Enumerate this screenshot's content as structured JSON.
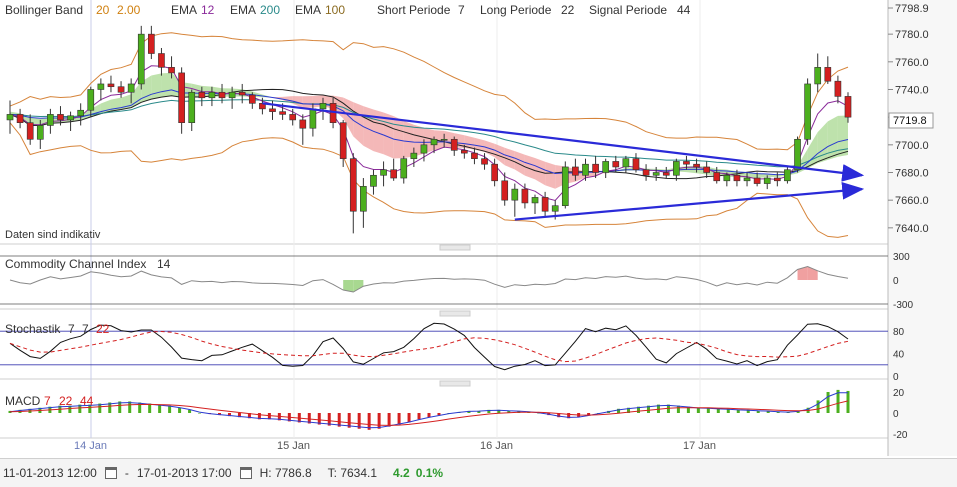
{
  "legend_main": {
    "bollinger_label": "Bollinger Band",
    "bollinger_p1": "20",
    "bollinger_p2": "2.00",
    "ema1_label": "EMA",
    "ema1_val": "12",
    "ema2_label": "EMA",
    "ema2_val": "200",
    "ema3_label": "EMA",
    "ema3_val": "100",
    "short_label": "Short Periode",
    "short_val": "7",
    "long_label": "Long Periode",
    "long_val": "22",
    "signal_label": "Signal Periode",
    "signal_val": "44"
  },
  "note": "Daten sind indikativ",
  "current_price": "7719.8",
  "cci": {
    "label": "Commodity Channel Index",
    "period": "14",
    "ticks": [
      "300",
      "0",
      "-300"
    ]
  },
  "stoch": {
    "label": "Stochastik",
    "k": "7",
    "d": "7",
    "slow": "22",
    "ticks": [
      "80",
      "40",
      "0"
    ]
  },
  "macd": {
    "label": "MACD",
    "fast": "7",
    "slow": "22",
    "signal": "44",
    "ticks": [
      "20",
      "0",
      "-20"
    ]
  },
  "x_labels": [
    "14 Jan",
    "15 Jan",
    "16 Jan",
    "17 Jan"
  ],
  "status": {
    "from": "11-01-2013 12:00",
    "dash": "-",
    "to": "17-01-2013 17:00",
    "high": "H: 7786.8",
    "low": "T: 7634.1",
    "change": "4.2",
    "change_pct": "0.1%"
  },
  "colors": {
    "up": "#4caf1e",
    "down": "#d42020",
    "ema12": "#8a2a9a",
    "ema200": "#2a8a8a",
    "ema100": "#8a6a20",
    "trend": "#2a2ad8",
    "cloud_red": "#f0a0a0",
    "cloud_green": "#a8d890"
  },
  "chart_data": {
    "type": "candlestick",
    "x": [
      "14 Jan",
      "15 Jan",
      "16 Jan",
      "17 Jan"
    ],
    "y_axis_ticks": [
      7640,
      7660,
      7680,
      7700,
      7720,
      7740,
      7760,
      7780,
      7798.9
    ],
    "ylim": [
      7634.1,
      7798.9
    ],
    "candles": [
      {
        "o": 7718,
        "h": 7732,
        "l": 7708,
        "c": 7722
      },
      {
        "o": 7722,
        "h": 7726,
        "l": 7712,
        "c": 7716
      },
      {
        "o": 7716,
        "h": 7722,
        "l": 7700,
        "c": 7704
      },
      {
        "o": 7704,
        "h": 7718,
        "l": 7697,
        "c": 7714
      },
      {
        "o": 7714,
        "h": 7726,
        "l": 7708,
        "c": 7722
      },
      {
        "o": 7722,
        "h": 7728,
        "l": 7714,
        "c": 7718
      },
      {
        "o": 7718,
        "h": 7724,
        "l": 7710,
        "c": 7721
      },
      {
        "o": 7721,
        "h": 7730,
        "l": 7714,
        "c": 7725
      },
      {
        "o": 7725,
        "h": 7742,
        "l": 7720,
        "c": 7740
      },
      {
        "o": 7740,
        "h": 7748,
        "l": 7732,
        "c": 7744
      },
      {
        "o": 7744,
        "h": 7750,
        "l": 7738,
        "c": 7742
      },
      {
        "o": 7742,
        "h": 7746,
        "l": 7734,
        "c": 7738
      },
      {
        "o": 7738,
        "h": 7748,
        "l": 7730,
        "c": 7744
      },
      {
        "o": 7744,
        "h": 7786,
        "l": 7740,
        "c": 7780
      },
      {
        "o": 7780,
        "h": 7786,
        "l": 7762,
        "c": 7766
      },
      {
        "o": 7766,
        "h": 7770,
        "l": 7750,
        "c": 7756
      },
      {
        "o": 7756,
        "h": 7764,
        "l": 7748,
        "c": 7752
      },
      {
        "o": 7752,
        "h": 7756,
        "l": 7708,
        "c": 7716
      },
      {
        "o": 7716,
        "h": 7740,
        "l": 7710,
        "c": 7738
      },
      {
        "o": 7738,
        "h": 7742,
        "l": 7728,
        "c": 7734
      },
      {
        "o": 7734,
        "h": 7742,
        "l": 7728,
        "c": 7738
      },
      {
        "o": 7738,
        "h": 7744,
        "l": 7730,
        "c": 7734
      },
      {
        "o": 7734,
        "h": 7742,
        "l": 7726,
        "c": 7738
      },
      {
        "o": 7738,
        "h": 7744,
        "l": 7730,
        "c": 7736
      },
      {
        "o": 7736,
        "h": 7738,
        "l": 7726,
        "c": 7730
      },
      {
        "o": 7730,
        "h": 7734,
        "l": 7722,
        "c": 7726
      },
      {
        "o": 7726,
        "h": 7732,
        "l": 7718,
        "c": 7724
      },
      {
        "o": 7724,
        "h": 7730,
        "l": 7718,
        "c": 7722
      },
      {
        "o": 7722,
        "h": 7726,
        "l": 7714,
        "c": 7718
      },
      {
        "o": 7718,
        "h": 7722,
        "l": 7700,
        "c": 7712
      },
      {
        "o": 7712,
        "h": 7730,
        "l": 7706,
        "c": 7726
      },
      {
        "o": 7726,
        "h": 7734,
        "l": 7718,
        "c": 7730
      },
      {
        "o": 7730,
        "h": 7734,
        "l": 7712,
        "c": 7716
      },
      {
        "o": 7716,
        "h": 7718,
        "l": 7684,
        "c": 7690
      },
      {
        "o": 7690,
        "h": 7694,
        "l": 7636,
        "c": 7652
      },
      {
        "o": 7652,
        "h": 7676,
        "l": 7640,
        "c": 7670
      },
      {
        "o": 7670,
        "h": 7682,
        "l": 7664,
        "c": 7678
      },
      {
        "o": 7678,
        "h": 7688,
        "l": 7670,
        "c": 7682
      },
      {
        "o": 7682,
        "h": 7690,
        "l": 7674,
        "c": 7676
      },
      {
        "o": 7676,
        "h": 7692,
        "l": 7672,
        "c": 7690
      },
      {
        "o": 7690,
        "h": 7698,
        "l": 7684,
        "c": 7694
      },
      {
        "o": 7694,
        "h": 7704,
        "l": 7688,
        "c": 7700
      },
      {
        "o": 7700,
        "h": 7706,
        "l": 7694,
        "c": 7704
      },
      {
        "o": 7704,
        "h": 7708,
        "l": 7698,
        "c": 7704
      },
      {
        "o": 7704,
        "h": 7706,
        "l": 7692,
        "c": 7696
      },
      {
        "o": 7696,
        "h": 7700,
        "l": 7690,
        "c": 7694
      },
      {
        "o": 7694,
        "h": 7698,
        "l": 7686,
        "c": 7690
      },
      {
        "o": 7690,
        "h": 7694,
        "l": 7682,
        "c": 7686
      },
      {
        "o": 7686,
        "h": 7690,
        "l": 7670,
        "c": 7674
      },
      {
        "o": 7674,
        "h": 7680,
        "l": 7656,
        "c": 7660
      },
      {
        "o": 7660,
        "h": 7672,
        "l": 7648,
        "c": 7668
      },
      {
        "o": 7668,
        "h": 7672,
        "l": 7654,
        "c": 7658
      },
      {
        "o": 7658,
        "h": 7664,
        "l": 7650,
        "c": 7662
      },
      {
        "o": 7662,
        "h": 7666,
        "l": 7648,
        "c": 7652
      },
      {
        "o": 7652,
        "h": 7660,
        "l": 7646,
        "c": 7656
      },
      {
        "o": 7656,
        "h": 7688,
        "l": 7654,
        "c": 7684
      },
      {
        "o": 7684,
        "h": 7690,
        "l": 7674,
        "c": 7678
      },
      {
        "o": 7678,
        "h": 7690,
        "l": 7674,
        "c": 7686
      },
      {
        "o": 7686,
        "h": 7692,
        "l": 7676,
        "c": 7680
      },
      {
        "o": 7680,
        "h": 7690,
        "l": 7676,
        "c": 7688
      },
      {
        "o": 7688,
        "h": 7692,
        "l": 7680,
        "c": 7684
      },
      {
        "o": 7684,
        "h": 7692,
        "l": 7680,
        "c": 7690
      },
      {
        "o": 7690,
        "h": 7694,
        "l": 7680,
        "c": 7682
      },
      {
        "o": 7682,
        "h": 7686,
        "l": 7674,
        "c": 7678
      },
      {
        "o": 7678,
        "h": 7684,
        "l": 7674,
        "c": 7680
      },
      {
        "o": 7680,
        "h": 7684,
        "l": 7676,
        "c": 7678
      },
      {
        "o": 7678,
        "h": 7690,
        "l": 7674,
        "c": 7688
      },
      {
        "o": 7688,
        "h": 7692,
        "l": 7682,
        "c": 7686
      },
      {
        "o": 7686,
        "h": 7690,
        "l": 7680,
        "c": 7684
      },
      {
        "o": 7684,
        "h": 7688,
        "l": 7676,
        "c": 7680
      },
      {
        "o": 7680,
        "h": 7684,
        "l": 7672,
        "c": 7674
      },
      {
        "o": 7674,
        "h": 7680,
        "l": 7670,
        "c": 7678
      },
      {
        "o": 7678,
        "h": 7682,
        "l": 7670,
        "c": 7674
      },
      {
        "o": 7674,
        "h": 7680,
        "l": 7670,
        "c": 7676
      },
      {
        "o": 7676,
        "h": 7680,
        "l": 7670,
        "c": 7672
      },
      {
        "o": 7672,
        "h": 7678,
        "l": 7668,
        "c": 7676
      },
      {
        "o": 7676,
        "h": 7680,
        "l": 7670,
        "c": 7674
      },
      {
        "o": 7674,
        "h": 7684,
        "l": 7672,
        "c": 7682
      },
      {
        "o": 7682,
        "h": 7706,
        "l": 7680,
        "c": 7704
      },
      {
        "o": 7704,
        "h": 7748,
        "l": 7700,
        "c": 7744
      },
      {
        "o": 7744,
        "h": 7766,
        "l": 7738,
        "c": 7756
      },
      {
        "o": 7756,
        "h": 7764,
        "l": 7744,
        "c": 7746
      },
      {
        "o": 7746,
        "h": 7750,
        "l": 7730,
        "c": 7735
      },
      {
        "o": 7735,
        "h": 7738,
        "l": 7716,
        "c": 7720
      }
    ],
    "trendlines": [
      {
        "from": {
          "i": 50,
          "y": 7646
        },
        "to": {
          "i": 83,
          "y": 7668
        }
      },
      {
        "from": {
          "i": 25,
          "y": 7730
        },
        "to": {
          "i": 83,
          "y": 7678
        }
      }
    ],
    "cci_ylim": [
      -300,
      300
    ],
    "stoch_ylim": [
      0,
      100
    ],
    "macd_ylim": [
      -20,
      20
    ],
    "macd_hist": [
      2,
      3,
      4,
      5,
      6,
      7,
      7,
      8,
      8,
      9,
      10,
      11,
      11,
      10,
      9,
      8,
      7,
      5,
      3,
      0,
      -1,
      -2,
      -3,
      -4,
      -5,
      -6,
      -6,
      -7,
      -8,
      -9,
      -10,
      -11,
      -12,
      -13,
      -14,
      -15,
      -16,
      -15,
      -13,
      -11,
      -9,
      -6,
      -4,
      -2,
      0,
      1,
      2,
      2,
      3,
      3,
      2,
      2,
      1,
      0,
      -2,
      -4,
      -5,
      -4,
      -2,
      0,
      2,
      4,
      5,
      6,
      7,
      8,
      8,
      7,
      6,
      5,
      5,
      4,
      4,
      3,
      3,
      2,
      2,
      1,
      1,
      2,
      5,
      12,
      20,
      22,
      21
    ]
  }
}
